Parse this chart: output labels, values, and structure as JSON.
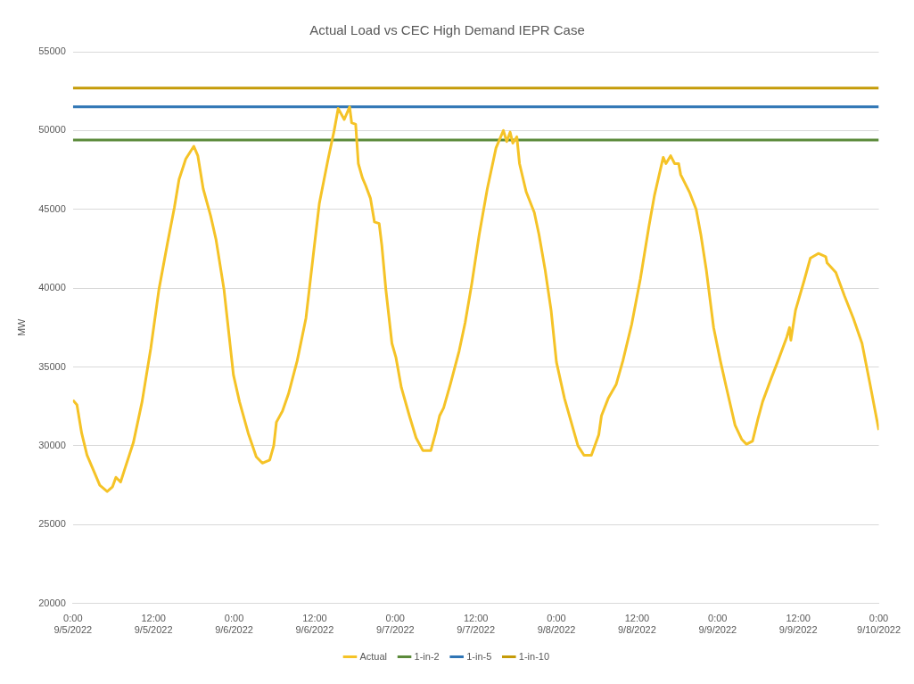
{
  "chart_data": {
    "type": "line",
    "title": "Actual Load vs CEC High Demand IEPR Case",
    "ylabel": "MW",
    "xlim": [
      "2022-09-05T00:00",
      "2022-09-10T00:00"
    ],
    "xticks": [
      {
        "value": "2022-09-05T00:00",
        "label": "0:00\n9/5/2022"
      },
      {
        "value": "2022-09-05T12:00",
        "label": "12:00\n9/5/2022"
      },
      {
        "value": "2022-09-06T00:00",
        "label": "0:00\n9/6/2022"
      },
      {
        "value": "2022-09-06T12:00",
        "label": "12:00\n9/6/2022"
      },
      {
        "value": "2022-09-07T00:00",
        "label": "0:00\n9/7/2022"
      },
      {
        "value": "2022-09-07T12:00",
        "label": "12:00\n9/7/2022"
      },
      {
        "value": "2022-09-08T00:00",
        "label": "0:00\n9/8/2022"
      },
      {
        "value": "2022-09-08T12:00",
        "label": "12:00\n9/8/2022"
      },
      {
        "value": "2022-09-09T00:00",
        "label": "0:00\n9/9/2022"
      },
      {
        "value": "2022-09-09T12:00",
        "label": "12:00\n9/9/2022"
      },
      {
        "value": "2022-09-10T00:00",
        "label": "0:00\n9/10/2022"
      }
    ],
    "ylim": [
      20000,
      55000
    ],
    "yticks": [
      20000,
      25000,
      30000,
      35000,
      40000,
      45000,
      50000,
      55000
    ],
    "grid": "y",
    "legend": "bottom",
    "marker": "none",
    "line_style": "solid",
    "series": [
      {
        "name": "Actual",
        "color": "#f5c327",
        "x": [
          "2022-09-05T00:00",
          "2022-09-05T00:36",
          "2022-09-05T01:18",
          "2022-09-05T02:06",
          "2022-09-05T03:12",
          "2022-09-05T04:00",
          "2022-09-05T05:06",
          "2022-09-05T05:54",
          "2022-09-05T06:24",
          "2022-09-05T07:06",
          "2022-09-05T07:42",
          "2022-09-05T09:00",
          "2022-09-05T10:18",
          "2022-09-05T11:36",
          "2022-09-05T12:48",
          "2022-09-05T14:06",
          "2022-09-05T15:06",
          "2022-09-05T15:48",
          "2022-09-05T16:48",
          "2022-09-05T18:00",
          "2022-09-05T18:36",
          "2022-09-05T19:24",
          "2022-09-05T20:30",
          "2022-09-05T21:18",
          "2022-09-05T22:30",
          "2022-09-05T23:54",
          "2022-09-06T00:48",
          "2022-09-06T02:06",
          "2022-09-06T03:18",
          "2022-09-06T04:12",
          "2022-09-06T05:18",
          "2022-09-06T05:54",
          "2022-09-06T06:18",
          "2022-09-06T07:12",
          "2022-09-06T08:06",
          "2022-09-06T09:24",
          "2022-09-06T10:42",
          "2022-09-06T11:54",
          "2022-09-06T12:42",
          "2022-09-06T14:00",
          "2022-09-06T14:54",
          "2022-09-06T15:30",
          "2022-09-06T16:24",
          "2022-09-06T17:12",
          "2022-09-06T17:30",
          "2022-09-06T18:06",
          "2022-09-06T18:30",
          "2022-09-06T19:06",
          "2022-09-06T19:36",
          "2022-09-06T20:18",
          "2022-09-06T20:54",
          "2022-09-06T21:36",
          "2022-09-06T22:00",
          "2022-09-06T22:36",
          "2022-09-06T23:30",
          "2022-09-07T00:06",
          "2022-09-07T00:54",
          "2022-09-07T02:06",
          "2022-09-07T03:06",
          "2022-09-07T04:06",
          "2022-09-07T05:18",
          "2022-09-07T06:00",
          "2022-09-07T06:36",
          "2022-09-07T07:12",
          "2022-09-07T08:12",
          "2022-09-07T09:30",
          "2022-09-07T10:24",
          "2022-09-07T11:24",
          "2022-09-07T12:30",
          "2022-09-07T13:42",
          "2022-09-07T15:00",
          "2022-09-07T15:42",
          "2022-09-07T16:06",
          "2022-09-07T16:36",
          "2022-09-07T17:06",
          "2022-09-07T17:30",
          "2022-09-07T18:06",
          "2022-09-07T18:30",
          "2022-09-07T19:30",
          "2022-09-07T20:42",
          "2022-09-07T21:24",
          "2022-09-07T22:18",
          "2022-09-07T23:12",
          "2022-09-08T00:00",
          "2022-09-08T01:12",
          "2022-09-08T02:12",
          "2022-09-08T03:12",
          "2022-09-08T04:06",
          "2022-09-08T05:12",
          "2022-09-08T06:18",
          "2022-09-08T06:42",
          "2022-09-08T07:42",
          "2022-09-08T08:54",
          "2022-09-08T09:54",
          "2022-09-08T11:12",
          "2022-09-08T12:30",
          "2022-09-08T13:48",
          "2022-09-08T14:36",
          "2022-09-08T15:18",
          "2022-09-08T15:54",
          "2022-09-08T16:18",
          "2022-09-08T17:00",
          "2022-09-08T17:36",
          "2022-09-08T18:12",
          "2022-09-08T18:30",
          "2022-09-08T19:48",
          "2022-09-08T20:48",
          "2022-09-08T21:30",
          "2022-09-08T22:18",
          "2022-09-08T23:24",
          "2022-09-09T00:24",
          "2022-09-09T01:18",
          "2022-09-09T02:36",
          "2022-09-09T03:36",
          "2022-09-09T04:18",
          "2022-09-09T05:12",
          "2022-09-09T06:00",
          "2022-09-09T06:42",
          "2022-09-09T08:00",
          "2022-09-09T09:00",
          "2022-09-09T10:18",
          "2022-09-09T10:42",
          "2022-09-09T10:54",
          "2022-09-09T11:36",
          "2022-09-09T12:54",
          "2022-09-09T13:48",
          "2022-09-09T15:00",
          "2022-09-09T16:06",
          "2022-09-09T16:18",
          "2022-09-09T17:36",
          "2022-09-09T18:54",
          "2022-09-09T20:12",
          "2022-09-09T21:30",
          "2022-09-09T22:42",
          "2022-09-10T00:00"
        ],
        "values": [
          32900,
          32600,
          30800,
          29400,
          28300,
          27500,
          27100,
          27400,
          28000,
          27700,
          28500,
          30200,
          32800,
          36200,
          39900,
          42900,
          45100,
          46900,
          48200,
          49000,
          48400,
          46300,
          44600,
          43100,
          39900,
          34500,
          32800,
          30800,
          29300,
          28900,
          29100,
          30000,
          31500,
          32200,
          33300,
          35400,
          38100,
          42500,
          45400,
          48200,
          50000,
          51400,
          50700,
          51500,
          50500,
          50400,
          47900,
          47000,
          46500,
          45700,
          44200,
          44100,
          42700,
          39900,
          36500,
          35600,
          33700,
          31900,
          30500,
          29700,
          29700,
          30800,
          31900,
          32400,
          33900,
          36000,
          37800,
          40300,
          43400,
          46300,
          48900,
          49600,
          50000,
          49300,
          49900,
          49200,
          49600,
          47900,
          46100,
          44800,
          43400,
          41200,
          38600,
          35300,
          33000,
          31500,
          30000,
          29400,
          29400,
          30700,
          31900,
          33000,
          33900,
          35400,
          37700,
          40600,
          44000,
          45900,
          47200,
          48300,
          47900,
          48400,
          47900,
          47900,
          47200,
          46100,
          45000,
          43400,
          41200,
          37500,
          35400,
          33700,
          31300,
          30400,
          30100,
          30300,
          31700,
          32800,
          34300,
          35400,
          36900,
          37500,
          36700,
          38600,
          40500,
          41900,
          42200,
          42000,
          41600,
          41000,
          39500,
          38100,
          36500,
          33900,
          31000
        ]
      },
      {
        "name": "1-in-2",
        "color": "#5b8a3a",
        "x": [
          "2022-09-05T00:00",
          "2022-09-10T00:00"
        ],
        "values": [
          49400,
          49400
        ]
      },
      {
        "name": "1-in-5",
        "color": "#2f75b5",
        "x": [
          "2022-09-05T00:00",
          "2022-09-10T00:00"
        ],
        "values": [
          51500,
          51500
        ]
      },
      {
        "name": "1-in-10",
        "color": "#c59b08",
        "x": [
          "2022-09-05T00:00",
          "2022-09-10T00:00"
        ],
        "values": [
          52700,
          52700
        ]
      }
    ]
  }
}
